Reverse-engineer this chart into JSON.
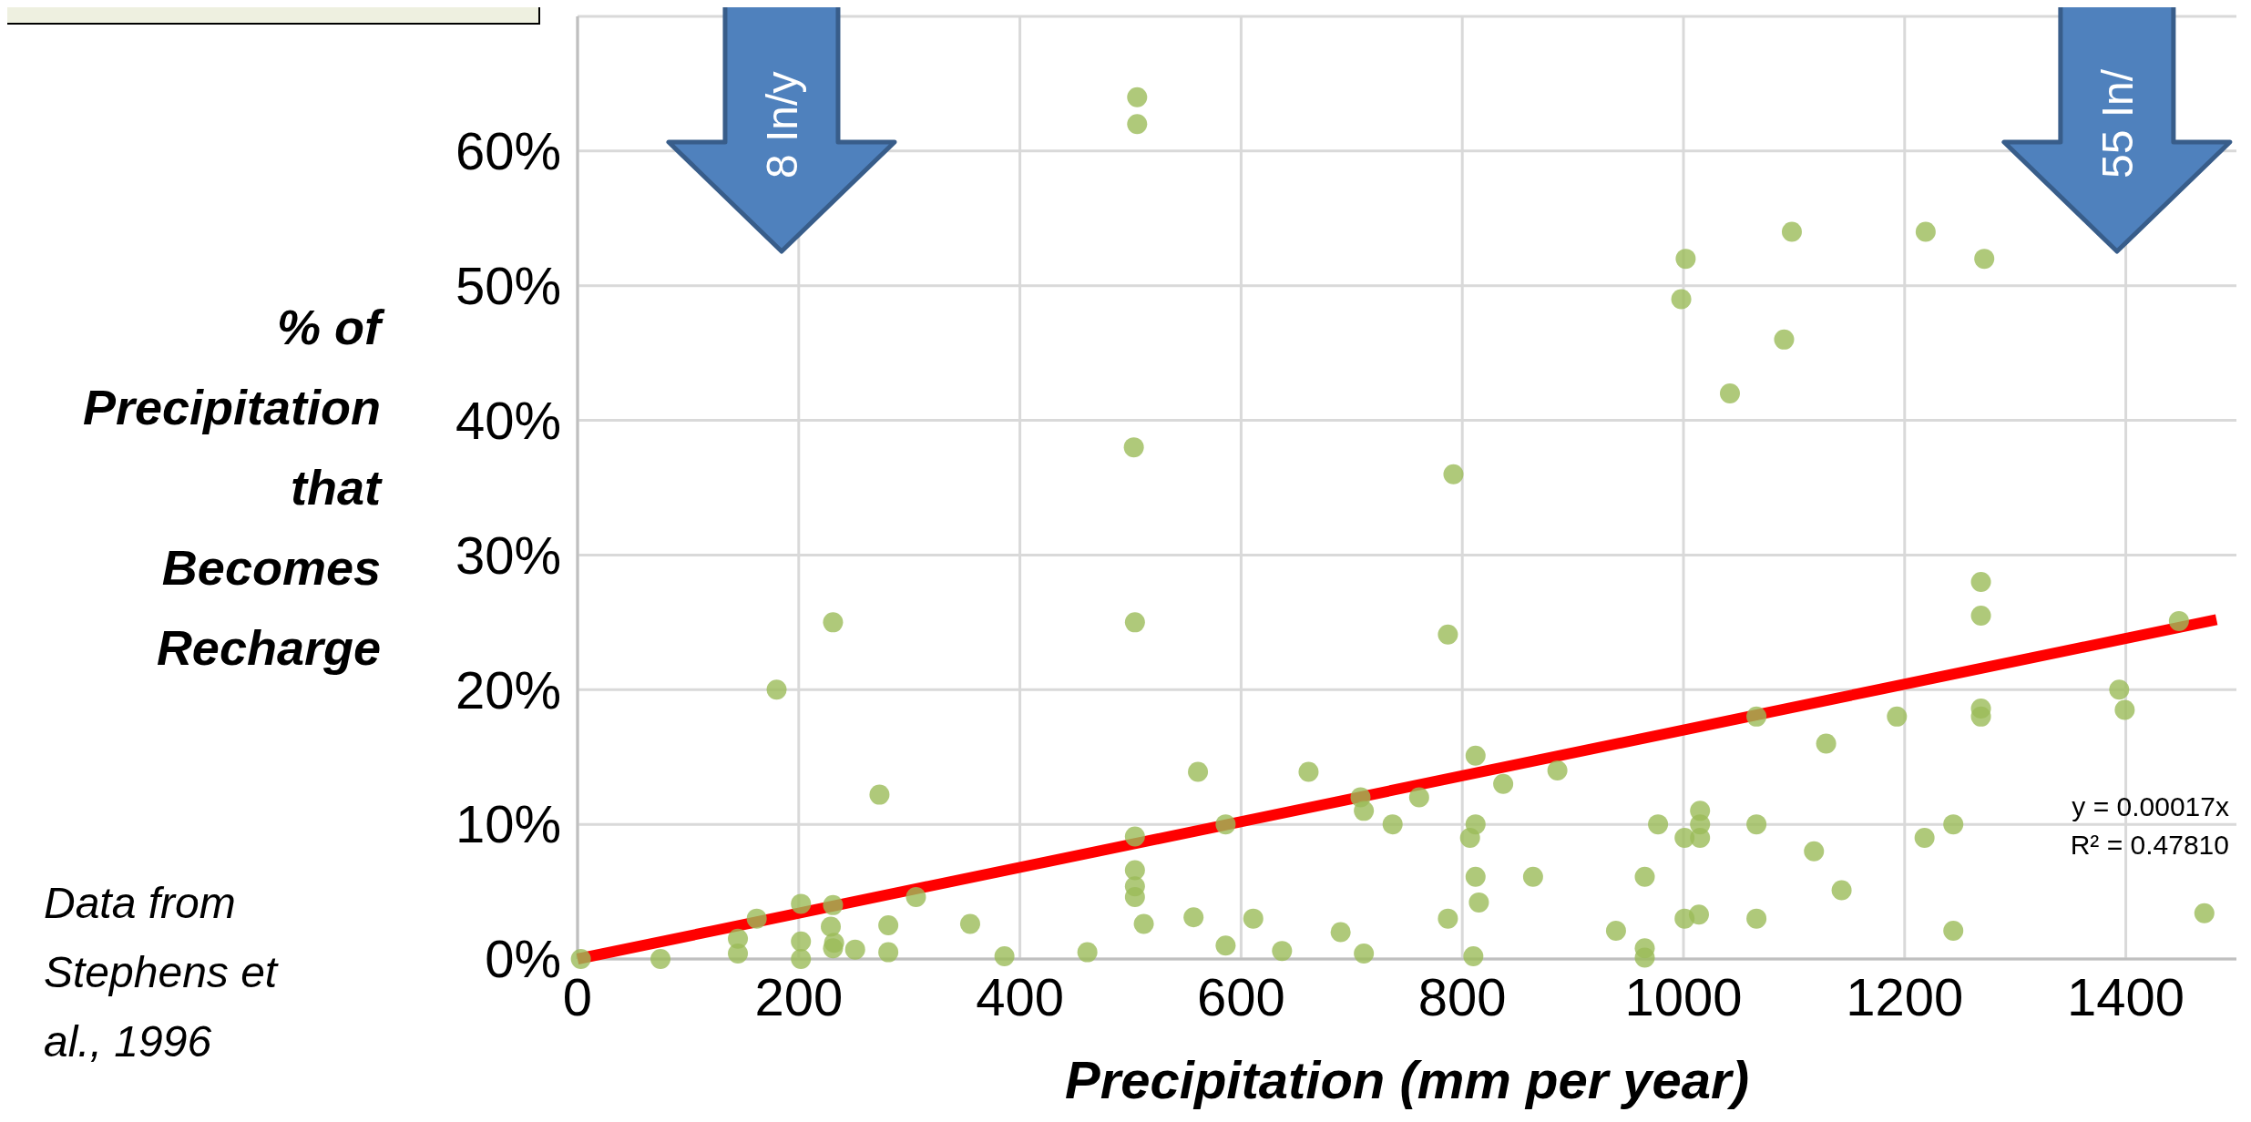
{
  "chart_data": {
    "type": "scatter",
    "xlabel": "Precipitation (mm per year)",
    "ylabel": "% of Precipitation that Becomes Recharge",
    "xlim": [
      0,
      1500
    ],
    "xticks": [
      0,
      200,
      400,
      600,
      800,
      1000,
      1200,
      1400
    ],
    "ylim": [
      0,
      70
    ],
    "yticks": [
      {
        "value": 0,
        "label": "0%"
      },
      {
        "value": 10,
        "label": "10%"
      },
      {
        "value": 20,
        "label": "20%"
      },
      {
        "value": 30,
        "label": "30%"
      },
      {
        "value": 40,
        "label": "40%"
      },
      {
        "value": 50,
        "label": "50%"
      },
      {
        "value": 60,
        "label": "60%"
      },
      {
        "value": 70,
        "label": null
      }
    ],
    "grid": true,
    "series": [
      {
        "color": "#9bbb59",
        "marker": "circle",
        "x": [
          3,
          75,
          145,
          145,
          162,
          180,
          202,
          202,
          202,
          231,
          231,
          229,
          232,
          231,
          251,
          273,
          281,
          281,
          306,
          355,
          386,
          461,
          506,
          506,
          503,
          504,
          504,
          504,
          504,
          504,
          512,
          557,
          561,
          586,
          586,
          611,
          637,
          661,
          690,
          708,
          711,
          711,
          737,
          761,
          787,
          787,
          792,
          807,
          810,
          812,
          812,
          812,
          815,
          837,
          864,
          886,
          939,
          965,
          965,
          965,
          977,
          998,
          1001,
          1001,
          1002,
          1014,
          1015,
          1015,
          1015,
          1042,
          1066,
          1066,
          1066,
          1091,
          1098,
          1118,
          1129,
          1143,
          1193,
          1218,
          1219,
          1244,
          1244,
          1269,
          1269,
          1269,
          1269,
          1272,
          1394,
          1399,
          1448,
          1471
        ],
        "values": [
          0,
          0,
          0.4,
          1.5,
          3,
          20,
          4.1,
          1.3,
          0,
          25,
          4,
          2.4,
          1.2,
          0.8,
          0.7,
          12.2,
          2.5,
          0.5,
          4.6,
          2.6,
          0.2,
          0.5,
          64,
          62,
          38,
          25,
          9.1,
          6.6,
          5.4,
          4.6,
          2.6,
          3.1,
          13.9,
          10,
          1,
          3,
          0.6,
          13.9,
          2,
          12,
          11,
          0.4,
          10,
          12,
          24.1,
          3,
          36,
          9,
          0.2,
          15.1,
          10,
          6.1,
          4.2,
          13,
          6.1,
          14,
          2.1,
          6.1,
          0.8,
          0.1,
          10,
          49,
          9,
          3,
          52,
          3.3,
          11,
          10,
          9,
          42,
          18,
          10,
          3,
          46,
          54,
          8,
          16,
          5.1,
          18,
          9,
          54,
          10,
          2.1,
          28,
          25.5,
          18.6,
          18,
          52,
          20,
          18.5,
          25.1,
          3.4
        ]
      },
      {
        "type": "line",
        "color": "#ff0000",
        "marker": "none",
        "line_style": "solid",
        "x": [
          0,
          1482
        ],
        "values": [
          0,
          25.2
        ]
      }
    ],
    "annotations": [
      "8 In/y",
      "55 In/",
      "y = 0.00017x",
      "R² = 0.47810",
      "Data from Stephens et al., 1996"
    ]
  }
}
